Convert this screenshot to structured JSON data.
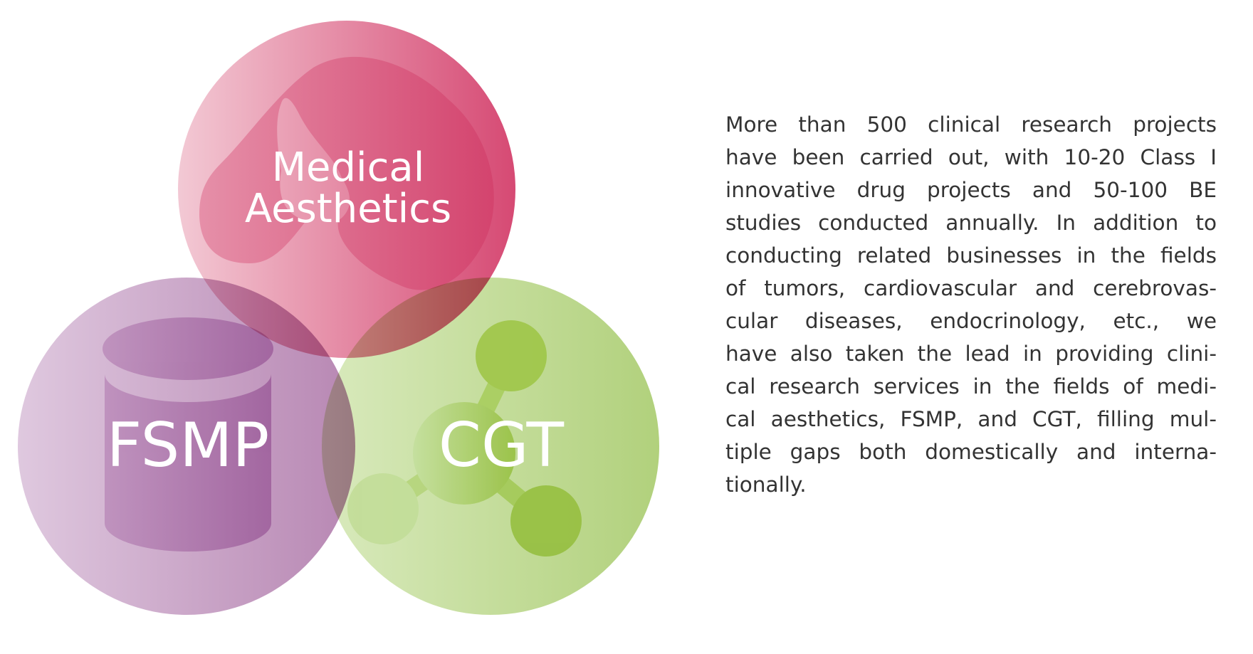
{
  "diagram": {
    "circles": [
      {
        "label_lines": [
          "Medical",
          "Aesthetics"
        ],
        "icon": "face-profile-icon",
        "color_light": "#f2c6d2",
        "color_dark": "#d4406c"
      },
      {
        "label_lines": [
          "FSMP"
        ],
        "icon": "can-cylinder-icon",
        "color_light": "#dcc3dc",
        "color_dark": "#a6689f"
      },
      {
        "label_lines": [
          "CGT"
        ],
        "icon": "molecule-icon",
        "color_light": "#d5e8b6",
        "color_dark": "#9ec564"
      }
    ]
  },
  "description": {
    "lines": [
      "More than 500 clinical research projects",
      "have been carried out, with 10-20 Class I",
      "innovative drug projects and 50-100 BE",
      "studies conducted annually. In addition to",
      "conducting related businesses in the fields",
      "of tumors, cardiovascular and cerebrovas-",
      "cular diseases, endocrinology, etc., we",
      "have also taken the lead in providing clini-",
      "cal research services in the fields of medi-",
      "cal aesthetics, FSMP, and CGT, filling mul-",
      "tiple gaps both domestically and interna-",
      "tionally."
    ]
  }
}
